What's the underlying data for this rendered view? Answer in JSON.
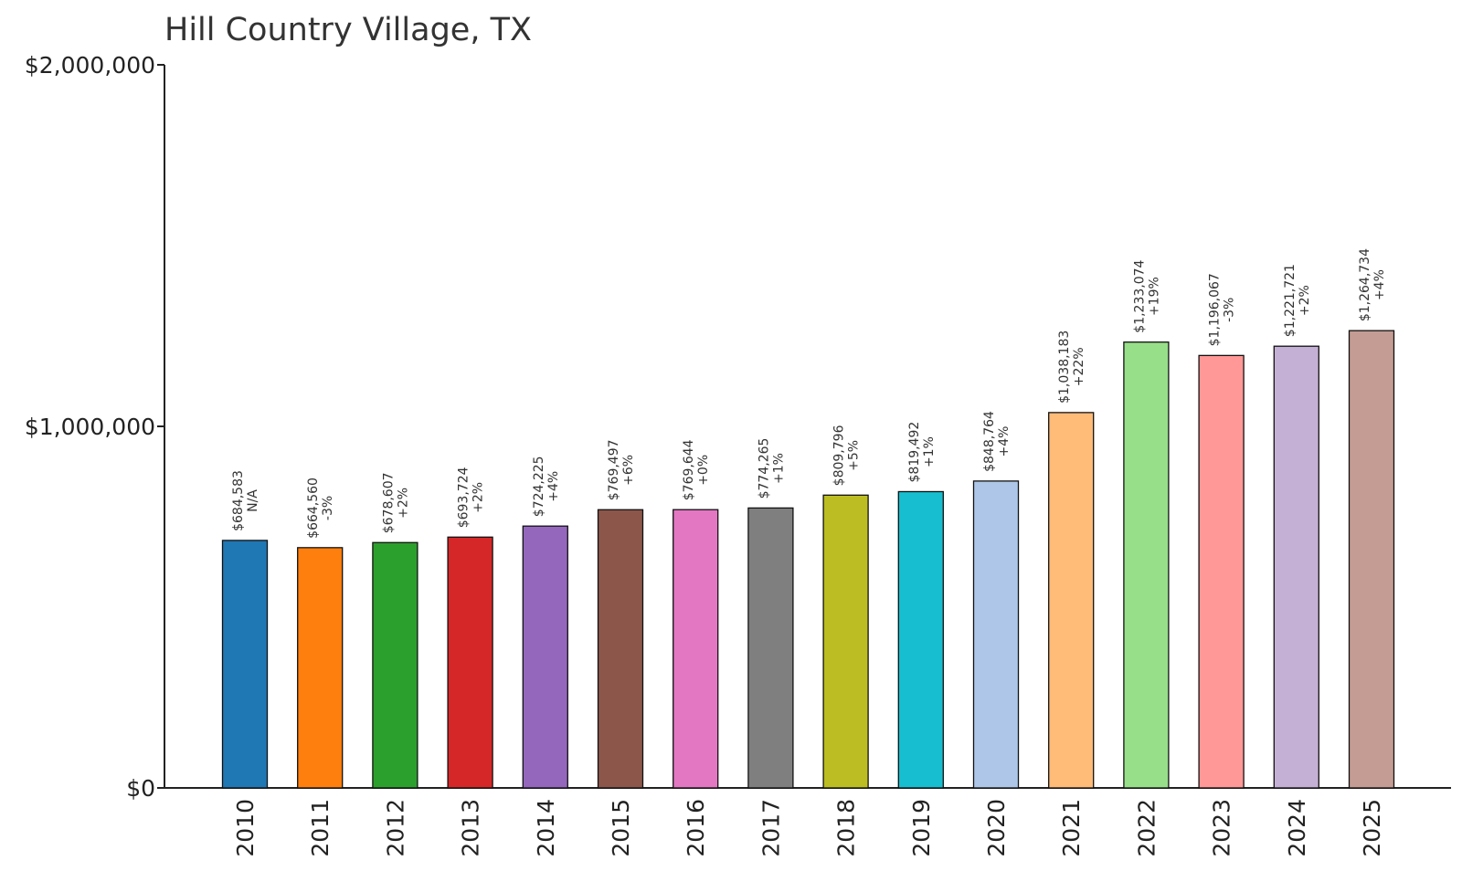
{
  "chart_data": {
    "type": "bar",
    "title": "Hill Country Village, TX",
    "xlabel": "",
    "ylabel": "",
    "ylim": [
      0,
      2000000
    ],
    "yticks": [
      {
        "value": 0,
        "label": "$0"
      },
      {
        "value": 1000000,
        "label": "$1,000,000"
      },
      {
        "value": 2000000,
        "label": "$2,000,000"
      }
    ],
    "categories": [
      "2010",
      "2011",
      "2012",
      "2013",
      "2014",
      "2015",
      "2016",
      "2017",
      "2018",
      "2019",
      "2020",
      "2021",
      "2022",
      "2023",
      "2024",
      "2025"
    ],
    "values": [
      684583,
      664560,
      678607,
      693724,
      724225,
      769497,
      769644,
      774265,
      809796,
      819492,
      848764,
      1038183,
      1233074,
      1196067,
      1221721,
      1264734
    ],
    "value_labels": [
      "$684,583",
      "$664,560",
      "$678,607",
      "$693,724",
      "$724,225",
      "$769,497",
      "$769,644",
      "$774,265",
      "$809,796",
      "$819,492",
      "$848,764",
      "$1,038,183",
      "$1,233,074",
      "$1,196,067",
      "$1,221,721",
      "$1,264,734"
    ],
    "change_labels": [
      "N/A",
      "-3%",
      "+2%",
      "+2%",
      "+4%",
      "+6%",
      "+0%",
      "+1%",
      "+5%",
      "+1%",
      "+4%",
      "+22%",
      "+19%",
      "-3%",
      "+2%",
      "+4%"
    ],
    "colors": [
      "#1f77b4",
      "#ff7f0e",
      "#2ca02c",
      "#d62728",
      "#9467bd",
      "#8c564b",
      "#e377c2",
      "#7f7f7f",
      "#bcbd22",
      "#17becf",
      "#aec7e8",
      "#ffbb78",
      "#98df8a",
      "#ff9896",
      "#c5b0d5",
      "#c49c94"
    ],
    "grid": false,
    "legend": "none"
  }
}
